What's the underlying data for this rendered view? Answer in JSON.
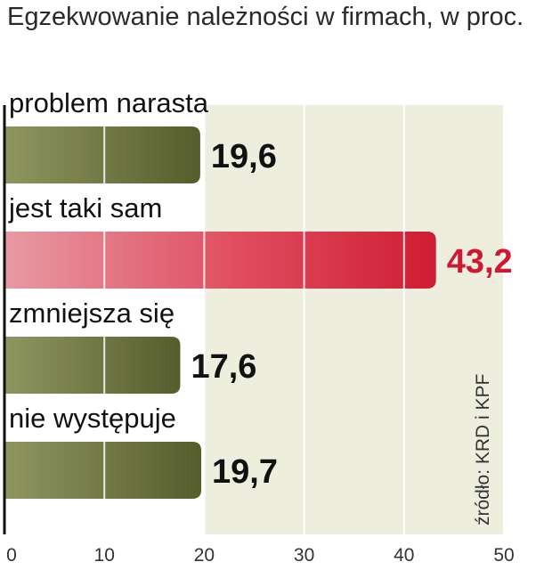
{
  "chart_data": {
    "type": "bar",
    "orientation": "horizontal",
    "title": "Egzekwowanie należności w firmach, w proc.",
    "categories": [
      "problem narasta",
      "jest  taki sam",
      "zmniejsza się",
      "nie występuje"
    ],
    "values": [
      19.6,
      43.2,
      17.6,
      19.7
    ],
    "value_labels": [
      "19,6",
      "43,2",
      "17,6",
      "19,7"
    ],
    "xlim": [
      0,
      50
    ],
    "ticks": [
      0,
      10,
      20,
      30,
      40,
      50
    ],
    "tick_labels": [
      "0",
      "10",
      "20",
      "30",
      "40",
      "50"
    ],
    "grid": true,
    "source": "źródło: KRD i KPF",
    "colors": {
      "default_bar": "#6e7540",
      "highlight_bar": "#d8283d",
      "highlight_label": "#d01830",
      "label": "#111111",
      "background_band": "#eeeede"
    },
    "highlight_index": 1
  }
}
